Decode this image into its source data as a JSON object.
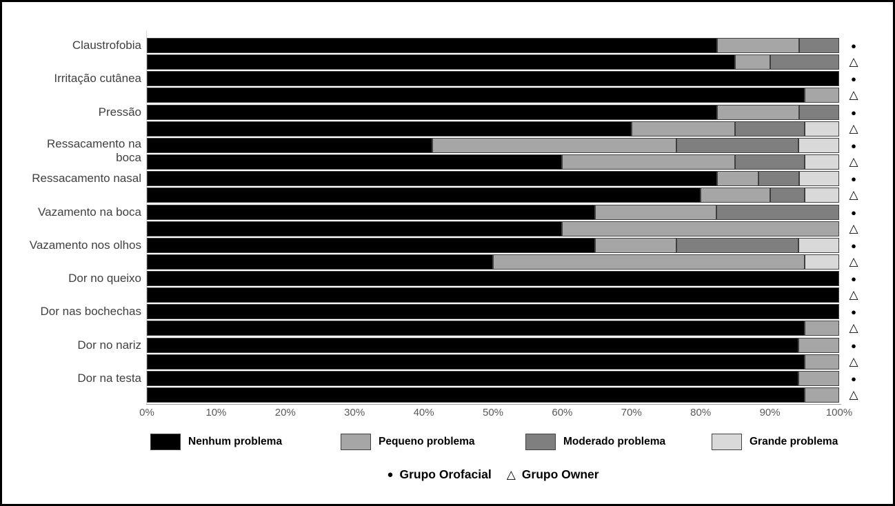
{
  "chart_data": {
    "type": "bar",
    "orientation": "horizontal",
    "stacked": true,
    "unit": "percent",
    "xlim": [
      0,
      100
    ],
    "grid": false,
    "x_ticks": [
      "0%",
      "10%",
      "20%",
      "30%",
      "40%",
      "50%",
      "60%",
      "70%",
      "80%",
      "90%",
      "100%"
    ],
    "segment_legend": {
      "position": "bottom",
      "items": [
        {
          "label": "Nenhum problema",
          "color": "#000000"
        },
        {
          "label": "Pequeno problema",
          "color": "#a6a6a6"
        },
        {
          "label": "Moderado problema",
          "color": "#7f7f7f"
        },
        {
          "label": "Grande problema",
          "color": "#d9d9d9"
        }
      ]
    },
    "group_legend": {
      "position": "bottom",
      "items": [
        {
          "symbol": "●",
          "label": "Grupo Orofacial"
        },
        {
          "symbol": "△",
          "label": "Grupo Owner"
        }
      ]
    },
    "series_names": [
      "Grupo Orofacial",
      "Grupo Owner"
    ],
    "series_markers": [
      "●",
      "△"
    ],
    "segment_names": [
      "Nenhum problema",
      "Pequeno problema",
      "Moderado problema",
      "Grande problema"
    ],
    "categories": [
      {
        "label": "Claustrofobia",
        "lines": [
          "Claustrofobia"
        ],
        "orofacial": [
          82.4,
          11.8,
          5.8,
          0
        ],
        "owner": [
          85,
          5,
          10,
          0
        ]
      },
      {
        "label": "Irritação cutânea",
        "lines": [
          "Irritação cutânea"
        ],
        "orofacial": [
          100,
          0,
          0,
          0
        ],
        "owner": [
          95,
          5,
          0,
          0
        ]
      },
      {
        "label": "Pressão",
        "lines": [
          "Pressão"
        ],
        "orofacial": [
          82.4,
          11.8,
          5.8,
          0
        ],
        "owner": [
          70,
          15,
          10,
          5
        ]
      },
      {
        "label": "Ressacamento na boca",
        "lines": [
          "Ressacamento na",
          "boca"
        ],
        "orofacial": [
          41.2,
          35.3,
          17.6,
          5.9
        ],
        "owner": [
          60,
          25,
          10,
          5
        ]
      },
      {
        "label": "Ressacamento nasal",
        "lines": [
          "Ressacamento nasal"
        ],
        "orofacial": [
          82.4,
          5.9,
          5.9,
          5.8
        ],
        "owner": [
          80,
          10,
          5,
          5
        ]
      },
      {
        "label": "Vazamento na boca",
        "lines": [
          "Vazamento na boca"
        ],
        "orofacial": [
          64.7,
          17.6,
          17.7,
          0
        ],
        "owner": [
          60,
          40,
          0,
          0
        ]
      },
      {
        "label": "Vazamento nos olhos",
        "lines": [
          "Vazamento nos olhos"
        ],
        "orofacial": [
          64.7,
          11.8,
          17.6,
          5.9
        ],
        "owner": [
          50,
          45,
          0,
          5
        ]
      },
      {
        "label": "Dor no queixo",
        "lines": [
          "Dor no queixo"
        ],
        "orofacial": [
          100,
          0,
          0,
          0
        ],
        "owner": [
          100,
          0,
          0,
          0
        ]
      },
      {
        "label": "Dor nas bochechas",
        "lines": [
          "Dor nas bochechas"
        ],
        "orofacial": [
          100,
          0,
          0,
          0
        ],
        "owner": [
          95,
          5,
          0,
          0
        ]
      },
      {
        "label": "Dor no nariz",
        "lines": [
          "Dor no nariz"
        ],
        "orofacial": [
          94.1,
          5.9,
          0,
          0
        ],
        "owner": [
          95,
          5,
          0,
          0
        ]
      },
      {
        "label": "Dor na testa",
        "lines": [
          "Dor na testa"
        ],
        "orofacial": [
          94.1,
          5.9,
          0,
          0
        ],
        "owner": [
          95,
          5,
          0,
          0
        ]
      }
    ]
  }
}
